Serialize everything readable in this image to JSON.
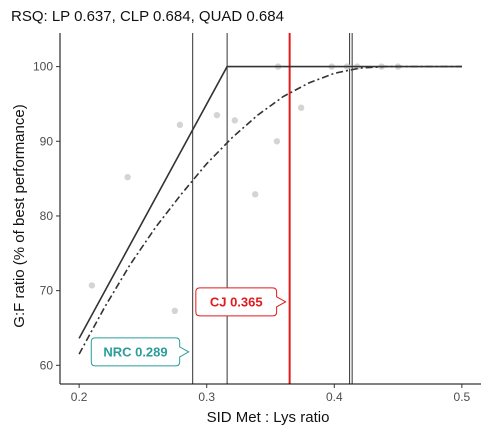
{
  "chart_data": {
    "type": "scatter",
    "title": "RSQ: LP 0.637, CLP 0.684, QUAD 0.684",
    "xlabel": "SID Met : Lys ratio",
    "ylabel": "G:F ratio (% of best performance)",
    "xlim": [
      0.185,
      0.515
    ],
    "ylim": [
      57.5,
      104.5
    ],
    "xticks": [
      0.2,
      0.3,
      0.4,
      0.5
    ],
    "xtick_labels": [
      "0.2",
      "0.3",
      "0.4",
      "0.5"
    ],
    "yticks": [
      60,
      70,
      80,
      90,
      100
    ],
    "ytick_labels": [
      "60",
      "70",
      "80",
      "90",
      "100"
    ],
    "grid": false,
    "points": [
      {
        "x": 0.21,
        "y": 70.7
      },
      {
        "x": 0.238,
        "y": 85.2
      },
      {
        "x": 0.275,
        "y": 67.3
      },
      {
        "x": 0.279,
        "y": 92.2
      },
      {
        "x": 0.308,
        "y": 93.5
      },
      {
        "x": 0.322,
        "y": 92.8
      },
      {
        "x": 0.338,
        "y": 82.9
      },
      {
        "x": 0.355,
        "y": 90.0
      },
      {
        "x": 0.356,
        "y": 100.0
      },
      {
        "x": 0.374,
        "y": 94.5
      },
      {
        "x": 0.398,
        "y": 100.0
      },
      {
        "x": 0.41,
        "y": 100.0
      },
      {
        "x": 0.418,
        "y": 100.0
      },
      {
        "x": 0.437,
        "y": 100.0
      },
      {
        "x": 0.45,
        "y": 100.0
      }
    ],
    "series": [
      {
        "style": "solid",
        "x": [
          0.2,
          0.316,
          0.5
        ],
        "y": [
          63.6,
          100.0,
          100.0
        ]
      },
      {
        "style": "dashdot",
        "x": [
          0.2,
          0.22,
          0.24,
          0.26,
          0.28,
          0.3,
          0.32,
          0.34,
          0.36,
          0.38,
          0.4,
          0.42,
          0.44,
          0.5
        ],
        "y": [
          61.5,
          67.8,
          73.5,
          78.5,
          82.9,
          87.0,
          90.5,
          93.5,
          96.0,
          97.8,
          99.1,
          99.8,
          100.0,
          100.0
        ]
      }
    ],
    "vlines": [
      {
        "x": 0.289,
        "color": "#333333"
      },
      {
        "x": 0.316,
        "color": "#333333"
      },
      {
        "x": 0.365,
        "color": "#e31a1c"
      },
      {
        "x": 0.412,
        "color": "#333333"
      },
      {
        "x": 0.414,
        "color": "#333333"
      }
    ],
    "annotations": [
      {
        "text": "NRC 0.289",
        "x": 0.289,
        "y": 61.8,
        "color": "#2a9d9a"
      },
      {
        "text": "CJ 0.365",
        "x": 0.365,
        "y": 68.5,
        "color": "#e31a1c"
      }
    ]
  }
}
